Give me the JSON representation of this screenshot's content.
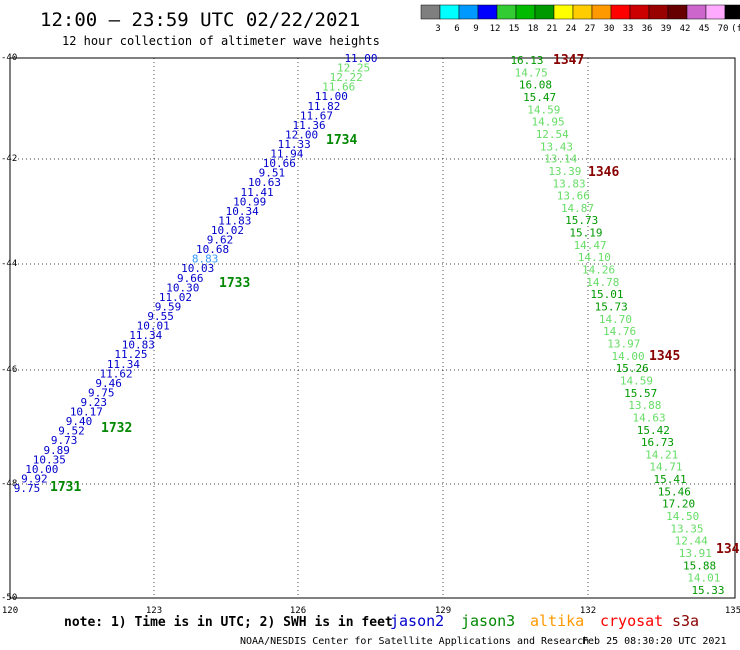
{
  "header": {
    "title": "12:00 — 23:59 UTC 02/22/2021",
    "subtitle": "12 hour collection of altimeter wave heights"
  },
  "color_scale": {
    "colors": [
      "#7f7f7f",
      "#00ffff",
      "#0099ff",
      "#0000ff",
      "#33cc33",
      "#00bb00",
      "#009900",
      "#ffff00",
      "#ffcc00",
      "#ff9900",
      "#ff0000",
      "#cc0000",
      "#990000",
      "#660000",
      "#cc66cc",
      "#ffaaff",
      "#000000"
    ],
    "labels": [
      "3",
      "6",
      "9",
      "12",
      "15",
      "18",
      "21",
      "24",
      "27",
      "30",
      "33",
      "36",
      "39",
      "42",
      "45",
      "70",
      "(ft)"
    ]
  },
  "axes": {
    "x_ticks": [
      "120",
      "123",
      "126",
      "129",
      "132",
      "135"
    ],
    "y_ticks": [
      "-40",
      "-42",
      "-44",
      "-46",
      "-48",
      "-50"
    ]
  },
  "tracks": [
    {
      "id": "west",
      "values": [
        {
          "t": "11.00",
          "c": "#0000cc"
        },
        {
          "t": "12.25",
          "c": "#66dd66"
        },
        {
          "t": "12.22",
          "c": "#66dd66"
        },
        {
          "t": "11.66",
          "c": "#66dd66"
        },
        {
          "t": "11.00",
          "c": "#0000cc"
        },
        {
          "t": "11.82",
          "c": "#0000cc"
        },
        {
          "t": "11.67",
          "c": "#0000cc"
        },
        {
          "t": "11.36",
          "c": "#0000cc"
        },
        {
          "t": "12.00",
          "c": "#0000cc"
        },
        {
          "t": "11.33",
          "c": "#0000cc"
        },
        {
          "t": "11.94",
          "c": "#0000cc"
        },
        {
          "t": "10.66",
          "c": "#0000cc"
        },
        {
          "t": "9.51",
          "c": "#0000cc"
        },
        {
          "t": "10.63",
          "c": "#0000cc"
        },
        {
          "t": "11.41",
          "c": "#0000cc"
        },
        {
          "t": "10.99",
          "c": "#0000cc"
        },
        {
          "t": "10.34",
          "c": "#0000cc"
        },
        {
          "t": "11.83",
          "c": "#0000cc"
        },
        {
          "t": "10.02",
          "c": "#0000cc"
        },
        {
          "t": "9.62",
          "c": "#0000cc"
        },
        {
          "t": "10.68",
          "c": "#0000cc"
        },
        {
          "t": "8.83",
          "c": "#3399ff"
        },
        {
          "t": "10.03",
          "c": "#0000cc"
        },
        {
          "t": "9.66",
          "c": "#0000cc"
        },
        {
          "t": "10.30",
          "c": "#0000cc"
        },
        {
          "t": "11.02",
          "c": "#0000cc"
        },
        {
          "t": "9.59",
          "c": "#0000cc"
        },
        {
          "t": "9.55",
          "c": "#0000cc"
        },
        {
          "t": "10.01",
          "c": "#0000cc"
        },
        {
          "t": "11.34",
          "c": "#0000cc"
        },
        {
          "t": "10.83",
          "c": "#0000cc"
        },
        {
          "t": "11.25",
          "c": "#0000cc"
        },
        {
          "t": "11.34",
          "c": "#0000cc"
        },
        {
          "t": "11.62",
          "c": "#0000cc"
        },
        {
          "t": "9.46",
          "c": "#0000cc"
        },
        {
          "t": "9.75",
          "c": "#0000cc"
        },
        {
          "t": "9.23",
          "c": "#0000cc"
        },
        {
          "t": "10.17",
          "c": "#0000cc"
        },
        {
          "t": "9.40",
          "c": "#0000cc"
        },
        {
          "t": "9.52",
          "c": "#0000cc"
        },
        {
          "t": "9.73",
          "c": "#0000cc"
        },
        {
          "t": "9.89",
          "c": "#0000cc"
        },
        {
          "t": "10.35",
          "c": "#0000cc"
        },
        {
          "t": "10.00",
          "c": "#0000cc"
        },
        {
          "t": "9.92",
          "c": "#0000cc"
        },
        {
          "t": "9.75",
          "c": "#0000cc"
        }
      ]
    },
    {
      "id": "east",
      "values": [
        {
          "t": "16.13",
          "c": "#009900"
        },
        {
          "t": "14.75",
          "c": "#66dd66"
        },
        {
          "t": "16.08",
          "c": "#009900"
        },
        {
          "t": "15.47",
          "c": "#009900"
        },
        {
          "t": "14.59",
          "c": "#66dd66"
        },
        {
          "t": "14.95",
          "c": "#66dd66"
        },
        {
          "t": "12.54",
          "c": "#66dd66"
        },
        {
          "t": "13.43",
          "c": "#66dd66"
        },
        {
          "t": "13.14",
          "c": "#66dd66"
        },
        {
          "t": "13.39",
          "c": "#66dd66"
        },
        {
          "t": "13.83",
          "c": "#66dd66"
        },
        {
          "t": "13.66",
          "c": "#66dd66"
        },
        {
          "t": "14.87",
          "c": "#66dd66"
        },
        {
          "t": "15.73",
          "c": "#009900"
        },
        {
          "t": "15.19",
          "c": "#009900"
        },
        {
          "t": "14.47",
          "c": "#66dd66"
        },
        {
          "t": "14.10",
          "c": "#66dd66"
        },
        {
          "t": "14.26",
          "c": "#66dd66"
        },
        {
          "t": "14.78",
          "c": "#66dd66"
        },
        {
          "t": "15.01",
          "c": "#009900"
        },
        {
          "t": "15.73",
          "c": "#009900"
        },
        {
          "t": "14.70",
          "c": "#66dd66"
        },
        {
          "t": "14.76",
          "c": "#66dd66"
        },
        {
          "t": "13.97",
          "c": "#66dd66"
        },
        {
          "t": "14.00",
          "c": "#66dd66"
        },
        {
          "t": "15.26",
          "c": "#009900"
        },
        {
          "t": "14.59",
          "c": "#66dd66"
        },
        {
          "t": "15.57",
          "c": "#009900"
        },
        {
          "t": "13.88",
          "c": "#66dd66"
        },
        {
          "t": "14.63",
          "c": "#66dd66"
        },
        {
          "t": "15.42",
          "c": "#009900"
        },
        {
          "t": "16.73",
          "c": "#009900"
        },
        {
          "t": "14.21",
          "c": "#66dd66"
        },
        {
          "t": "14.71",
          "c": "#66dd66"
        },
        {
          "t": "15.41",
          "c": "#009900"
        },
        {
          "t": "15.46",
          "c": "#009900"
        },
        {
          "t": "17.20",
          "c": "#009900"
        },
        {
          "t": "14.50",
          "c": "#66dd66"
        },
        {
          "t": "13.35",
          "c": "#66dd66"
        },
        {
          "t": "12.44",
          "c": "#66dd66"
        },
        {
          "t": "13.91",
          "c": "#66dd66"
        },
        {
          "t": "15.88",
          "c": "#009900"
        },
        {
          "t": "14.01",
          "c": "#66dd66"
        },
        {
          "t": "15.33",
          "c": "#009900"
        }
      ]
    }
  ],
  "pass_labels": [
    {
      "t": "1734",
      "c": "#008800"
    },
    {
      "t": "1733",
      "c": "#008800"
    },
    {
      "t": "1732",
      "c": "#008800"
    },
    {
      "t": "1731",
      "c": "#008800"
    },
    {
      "t": "1347",
      "c": "#880000"
    },
    {
      "t": "1346",
      "c": "#880000"
    },
    {
      "t": "1345",
      "c": "#880000"
    },
    {
      "t": "134",
      "c": "#880000"
    }
  ],
  "footer": {
    "note": "note: 1) Time is in UTC; 2) SWH is in feet",
    "satellites": [
      {
        "name": "jason2",
        "color": "#0000cc"
      },
      {
        "name": "jason3",
        "color": "#008800"
      },
      {
        "name": "altika",
        "color": "#ff9900"
      },
      {
        "name": "cryosat",
        "color": "#ff0000"
      },
      {
        "name": "s3a",
        "color": "#880000"
      }
    ],
    "credit": "NOAA/NESDIS Center for Satellite Applications and Research",
    "timestamp": "Feb 25 08:30:20 UTC 2021"
  }
}
